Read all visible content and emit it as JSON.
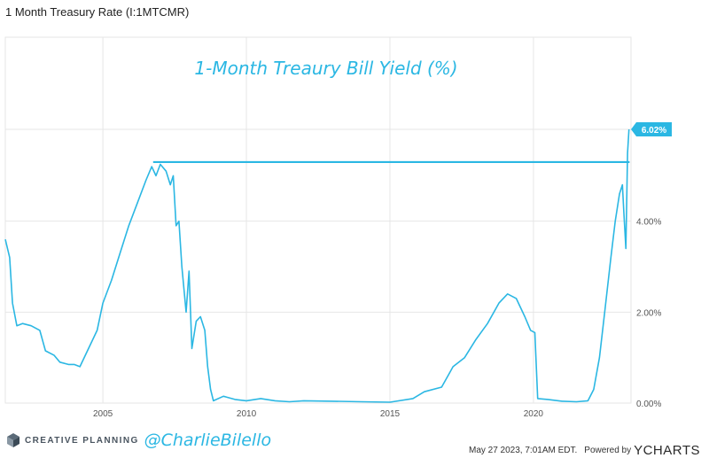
{
  "header": {
    "chart_name": "1 Month Treasury Rate (I:1MTCMR)"
  },
  "footer": {
    "brand": "CREATIVE PLANNING",
    "handle": "@CharlieBilello",
    "timestamp": "May 27 2023, 7:01AM EDT.",
    "powered_by": "Powered by",
    "provider": "YCHARTS"
  },
  "colors": {
    "line": "#2bb7e3",
    "grid": "#e6e6e6",
    "axis_text": "#555555",
    "title": "#2bb7e3"
  },
  "chart_data": {
    "type": "line",
    "title": "1-Month Treaury Bill Yield (%)",
    "xlabel": "",
    "ylabel": "",
    "xlim": [
      2001.6,
      2023.4
    ],
    "ylim": [
      0,
      6.02
    ],
    "x_ticks": [
      2005,
      2010,
      2015,
      2020
    ],
    "x_tick_labels": [
      "2005",
      "2010",
      "2015",
      "2020"
    ],
    "y_ticks": [
      0,
      2,
      4
    ],
    "y_tick_labels": [
      "0.00%",
      "2.00%",
      "4.00%"
    ],
    "last_value_label": "6.02%",
    "last_value": 6.02,
    "reference_line": {
      "y": 5.3,
      "x_start": 2006.75,
      "x_end": 2023.35
    },
    "grid": true,
    "series": [
      {
        "values": [
          [
            2001.6,
            3.6
          ],
          [
            2001.75,
            3.2
          ],
          [
            2001.85,
            2.2
          ],
          [
            2002.0,
            1.7
          ],
          [
            2002.2,
            1.75
          ],
          [
            2002.5,
            1.7
          ],
          [
            2002.8,
            1.6
          ],
          [
            2003.0,
            1.15
          ],
          [
            2003.3,
            1.05
          ],
          [
            2003.5,
            0.9
          ],
          [
            2003.8,
            0.85
          ],
          [
            2004.0,
            0.85
          ],
          [
            2004.2,
            0.8
          ],
          [
            2004.5,
            1.2
          ],
          [
            2004.8,
            1.6
          ],
          [
            2005.0,
            2.2
          ],
          [
            2005.3,
            2.7
          ],
          [
            2005.6,
            3.3
          ],
          [
            2005.9,
            3.9
          ],
          [
            2006.2,
            4.4
          ],
          [
            2006.5,
            4.9
          ],
          [
            2006.7,
            5.2
          ],
          [
            2006.85,
            5.0
          ],
          [
            2007.0,
            5.25
          ],
          [
            2007.2,
            5.1
          ],
          [
            2007.35,
            4.8
          ],
          [
            2007.45,
            5.0
          ],
          [
            2007.55,
            3.9
          ],
          [
            2007.65,
            4.0
          ],
          [
            2007.75,
            3.0
          ],
          [
            2007.9,
            2.0
          ],
          [
            2008.0,
            2.9
          ],
          [
            2008.1,
            1.2
          ],
          [
            2008.25,
            1.8
          ],
          [
            2008.4,
            1.9
          ],
          [
            2008.55,
            1.6
          ],
          [
            2008.65,
            0.8
          ],
          [
            2008.75,
            0.3
          ],
          [
            2008.85,
            0.05
          ],
          [
            2009.2,
            0.15
          ],
          [
            2009.6,
            0.08
          ],
          [
            2010.0,
            0.05
          ],
          [
            2010.5,
            0.1
          ],
          [
            2011.0,
            0.05
          ],
          [
            2011.5,
            0.03
          ],
          [
            2012.0,
            0.05
          ],
          [
            2013.0,
            0.04
          ],
          [
            2014.0,
            0.03
          ],
          [
            2015.0,
            0.02
          ],
          [
            2015.8,
            0.1
          ],
          [
            2016.2,
            0.25
          ],
          [
            2016.8,
            0.35
          ],
          [
            2017.2,
            0.8
          ],
          [
            2017.6,
            1.0
          ],
          [
            2018.0,
            1.4
          ],
          [
            2018.4,
            1.75
          ],
          [
            2018.8,
            2.2
          ],
          [
            2019.1,
            2.4
          ],
          [
            2019.4,
            2.3
          ],
          [
            2019.7,
            1.9
          ],
          [
            2019.9,
            1.6
          ],
          [
            2020.05,
            1.55
          ],
          [
            2020.15,
            0.1
          ],
          [
            2020.5,
            0.08
          ],
          [
            2021.0,
            0.04
          ],
          [
            2021.5,
            0.03
          ],
          [
            2021.9,
            0.05
          ],
          [
            2022.1,
            0.3
          ],
          [
            2022.3,
            1.0
          ],
          [
            2022.5,
            2.1
          ],
          [
            2022.7,
            3.2
          ],
          [
            2022.85,
            4.0
          ],
          [
            2023.0,
            4.6
          ],
          [
            2023.1,
            4.8
          ],
          [
            2023.15,
            4.2
          ],
          [
            2023.22,
            3.4
          ],
          [
            2023.28,
            5.5
          ],
          [
            2023.33,
            6.02
          ]
        ]
      }
    ]
  }
}
